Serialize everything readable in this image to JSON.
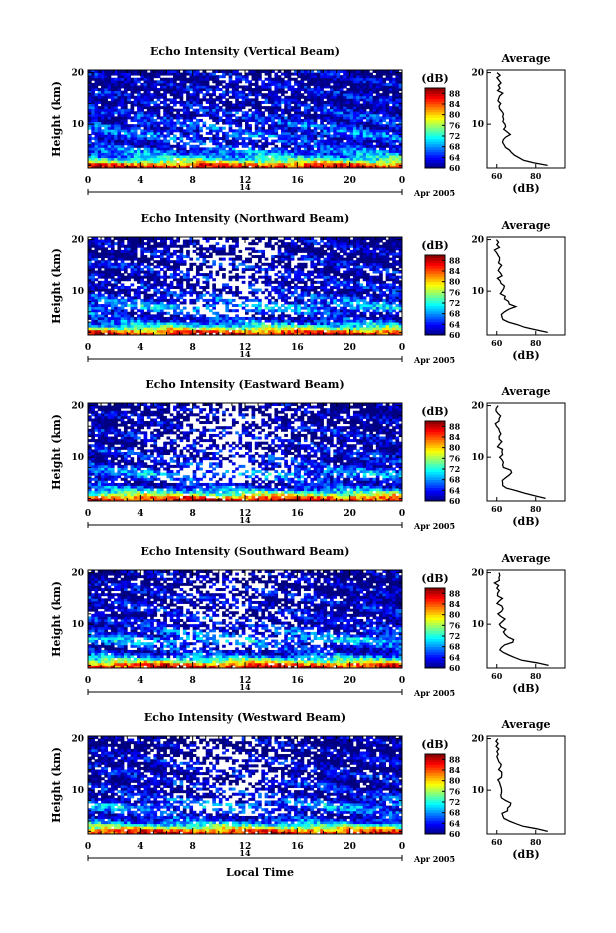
{
  "figure": {
    "height_label": "Height (km)",
    "avg_title": "Average",
    "cbar_label": "(dB)",
    "avg_xlabel": "(dB)",
    "month_label": "Apr 2005",
    "local_time_label": "Local Time",
    "day_label": "14"
  },
  "chart_data": [
    {
      "type": "heatmap",
      "title": "Echo Intensity (Vertical Beam)",
      "ylabel": "Height (km)",
      "xticks": [
        "0",
        "4",
        "8",
        "12",
        "16",
        "20",
        "0"
      ],
      "yticks": [
        "10",
        "20"
      ],
      "xlim": [
        0,
        24
      ],
      "ylim": [
        1.5,
        20.5
      ],
      "colorbar": {
        "label": "(dB)",
        "ticks": [
          "60",
          "64",
          "68",
          "72",
          "76",
          "80",
          "84",
          "88"
        ],
        "range": [
          60,
          90
        ]
      },
      "sparsity": 0.12,
      "profile": [
        [
          2,
          86
        ],
        [
          3,
          74
        ],
        [
          4,
          68
        ],
        [
          5,
          66
        ],
        [
          6,
          63
        ],
        [
          7,
          64
        ],
        [
          8,
          66
        ],
        [
          9,
          64
        ],
        [
          10,
          65
        ],
        [
          11,
          63
        ],
        [
          12,
          63
        ],
        [
          13,
          62
        ],
        [
          14,
          62
        ],
        [
          15,
          61
        ],
        [
          16,
          62
        ],
        [
          17,
          61
        ],
        [
          18,
          61
        ],
        [
          19,
          60
        ],
        [
          20,
          61
        ]
      ]
    },
    {
      "type": "heatmap",
      "title": "Echo Intensity (Northward Beam)",
      "ylabel": "Height (km)",
      "xticks": [
        "0",
        "4",
        "8",
        "12",
        "16",
        "20",
        "0"
      ],
      "yticks": [
        "10",
        "20"
      ],
      "xlim": [
        0,
        24
      ],
      "ylim": [
        1.5,
        20.5
      ],
      "colorbar": {
        "label": "(dB)",
        "ticks": [
          "60",
          "64",
          "68",
          "72",
          "76",
          "80",
          "84",
          "88"
        ],
        "range": [
          60,
          90
        ]
      },
      "sparsity": 0.28,
      "profile": [
        [
          2,
          86
        ],
        [
          3,
          74
        ],
        [
          4,
          66
        ],
        [
          5,
          62
        ],
        [
          6,
          65
        ],
        [
          7,
          69
        ],
        [
          8,
          65
        ],
        [
          9,
          64
        ],
        [
          10,
          62
        ],
        [
          11,
          63
        ],
        [
          12,
          61
        ],
        [
          13,
          62
        ],
        [
          14,
          61
        ],
        [
          15,
          62
        ],
        [
          16,
          61
        ],
        [
          17,
          61
        ],
        [
          18,
          60
        ],
        [
          19,
          61
        ],
        [
          20,
          60
        ]
      ]
    },
    {
      "type": "heatmap",
      "title": "Echo Intensity (Eastward Beam)",
      "ylabel": "Height (km)",
      "xticks": [
        "0",
        "4",
        "8",
        "12",
        "16",
        "20",
        "0"
      ],
      "yticks": [
        "10",
        "20"
      ],
      "xlim": [
        0,
        24
      ],
      "ylim": [
        1.5,
        20.5
      ],
      "colorbar": {
        "label": "(dB)",
        "ticks": [
          "60",
          "64",
          "68",
          "72",
          "76",
          "80",
          "84",
          "88"
        ],
        "range": [
          60,
          90
        ]
      },
      "sparsity": 0.3,
      "profile": [
        [
          2,
          86
        ],
        [
          3,
          74
        ],
        [
          4,
          66
        ],
        [
          5,
          62
        ],
        [
          6,
          65
        ],
        [
          7,
          68
        ],
        [
          8,
          64
        ],
        [
          9,
          63
        ],
        [
          10,
          62
        ],
        [
          11,
          63
        ],
        [
          12,
          61
        ],
        [
          13,
          62
        ],
        [
          14,
          61
        ],
        [
          15,
          62
        ],
        [
          16,
          61
        ],
        [
          17,
          60
        ],
        [
          18,
          61
        ],
        [
          19,
          60
        ],
        [
          20,
          60
        ]
      ]
    },
    {
      "type": "heatmap",
      "title": "Echo Intensity (Southward Beam)",
      "ylabel": "Height (km)",
      "xticks": [
        "0",
        "4",
        "8",
        "12",
        "16",
        "20",
        "0"
      ],
      "yticks": [
        "10",
        "20"
      ],
      "xlim": [
        0,
        24
      ],
      "ylim": [
        1.5,
        20.5
      ],
      "colorbar": {
        "label": "(dB)",
        "ticks": [
          "60",
          "64",
          "68",
          "72",
          "76",
          "80",
          "84",
          "88"
        ],
        "range": [
          60,
          90
        ]
      },
      "sparsity": 0.26,
      "profile": [
        [
          2,
          86
        ],
        [
          3,
          74
        ],
        [
          4,
          66
        ],
        [
          5,
          62
        ],
        [
          6,
          65
        ],
        [
          7,
          69
        ],
        [
          8,
          65
        ],
        [
          9,
          64
        ],
        [
          10,
          62
        ],
        [
          11,
          63
        ],
        [
          12,
          61
        ],
        [
          13,
          62
        ],
        [
          14,
          61
        ],
        [
          15,
          62
        ],
        [
          16,
          61
        ],
        [
          17,
          61
        ],
        [
          18,
          60
        ],
        [
          19,
          61
        ],
        [
          20,
          60
        ]
      ]
    },
    {
      "type": "heatmap",
      "title": "Echo Intensity (Westward Beam)",
      "ylabel": "Height (km)",
      "xticks": [
        "0",
        "4",
        "8",
        "12",
        "16",
        "20",
        "0"
      ],
      "yticks": [
        "10",
        "20"
      ],
      "xlim": [
        0,
        24
      ],
      "ylim": [
        1.5,
        20.5
      ],
      "colorbar": {
        "label": "(dB)",
        "ticks": [
          "60",
          "64",
          "68",
          "72",
          "76",
          "80",
          "84",
          "88"
        ],
        "range": [
          60,
          90
        ]
      },
      "sparsity": 0.27,
      "profile": [
        [
          2,
          86
        ],
        [
          3,
          74
        ],
        [
          4,
          66
        ],
        [
          5,
          62
        ],
        [
          6,
          65
        ],
        [
          7,
          68
        ],
        [
          8,
          64
        ],
        [
          9,
          63
        ],
        [
          10,
          62
        ],
        [
          11,
          63
        ],
        [
          12,
          61
        ],
        [
          13,
          62
        ],
        [
          14,
          61
        ],
        [
          15,
          62
        ],
        [
          16,
          61
        ],
        [
          17,
          60
        ],
        [
          18,
          61
        ],
        [
          19,
          60
        ],
        [
          20,
          60
        ]
      ]
    }
  ]
}
